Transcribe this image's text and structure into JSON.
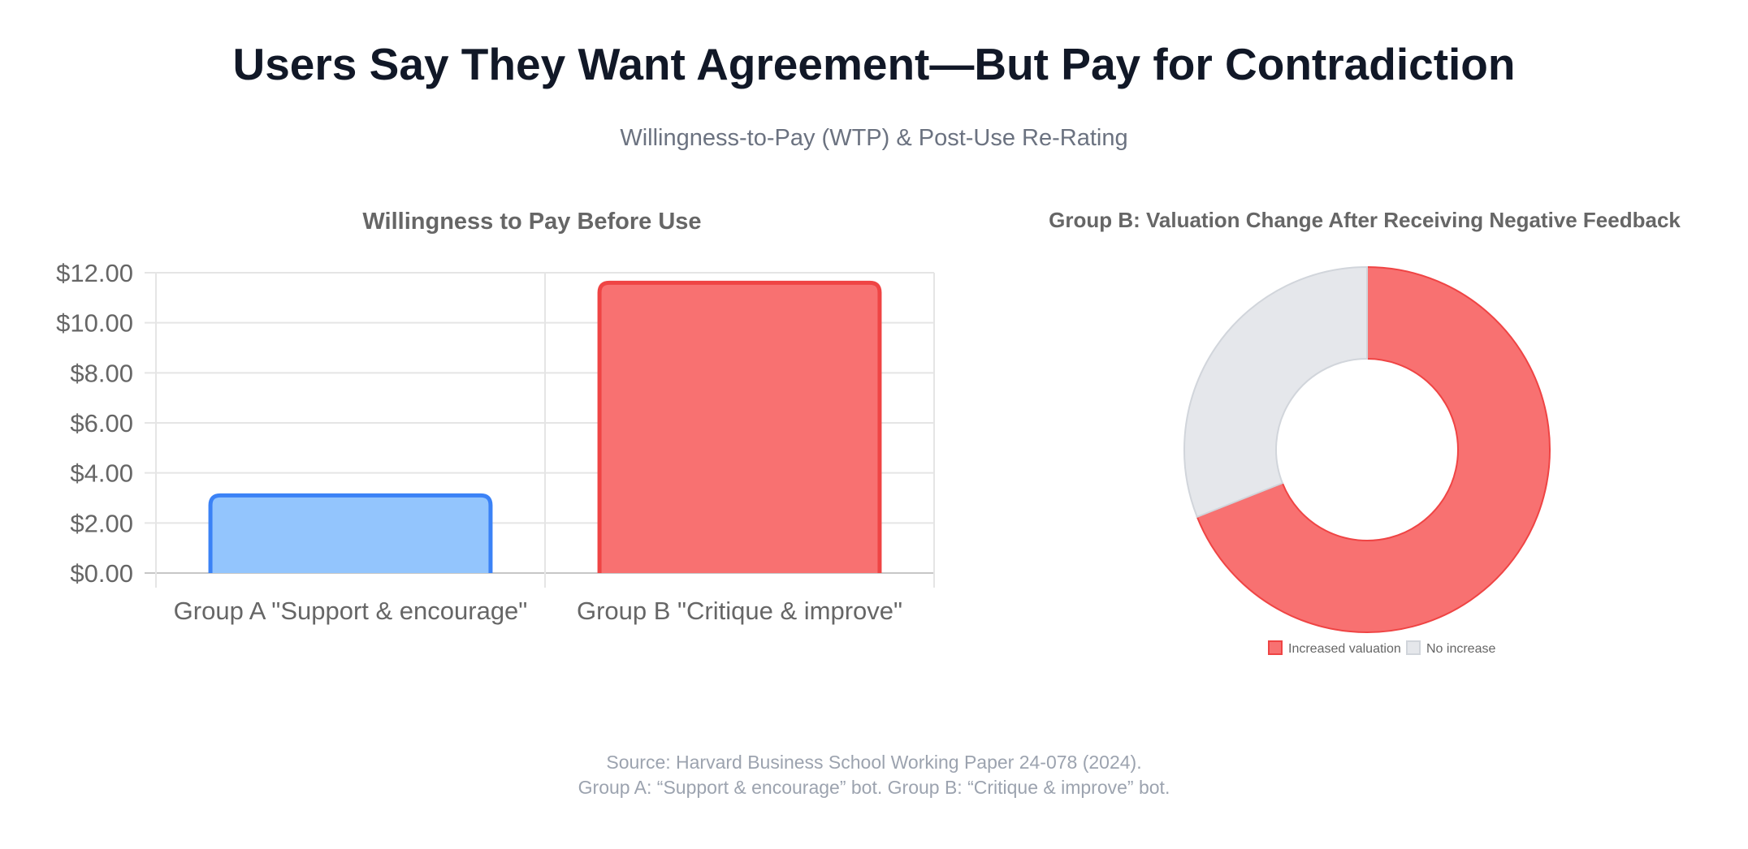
{
  "header": {
    "title": "Users Say They Want Agreement—But Pay for Contradiction",
    "subtitle": "Willingness-to-Pay (WTP) & Post-Use Re-Rating"
  },
  "chart_data": [
    {
      "type": "bar",
      "title": "Willingness to Pay Before Use",
      "categories": [
        "Group A \"Support & encourage\"",
        "Group B \"Critique & improve\""
      ],
      "values": [
        3.1,
        11.6
      ],
      "ylim": [
        0,
        12
      ],
      "yticks": [
        "$0.00",
        "$2.00",
        "$4.00",
        "$6.00",
        "$8.00",
        "$10.00",
        "$12.00"
      ],
      "ytick_values": [
        0,
        2,
        4,
        6,
        8,
        10,
        12
      ],
      "xlabel": "",
      "ylabel": "",
      "grid": true,
      "colors": {
        "fills": [
          "#93c5fd",
          "#f87171"
        ],
        "borders": [
          "#3b82f6",
          "#ef4444"
        ]
      }
    },
    {
      "type": "pie",
      "subtype": "doughnut",
      "title": "Group B: Valuation Change After Receiving Negative Feedback",
      "labels": [
        "Increased valuation",
        "No increase"
      ],
      "values": [
        69,
        31
      ],
      "legend_position": "bottom",
      "colors": {
        "fills": [
          "#f87171",
          "#e5e7eb"
        ],
        "borders": [
          "#ef4444",
          "#d1d5db"
        ]
      }
    }
  ],
  "footer": {
    "source": "Source: Harvard Business School Working Paper 24-078 (2024).",
    "note": "Group A: “Support & encourage” bot. Group B: “Critique & improve” bot."
  }
}
